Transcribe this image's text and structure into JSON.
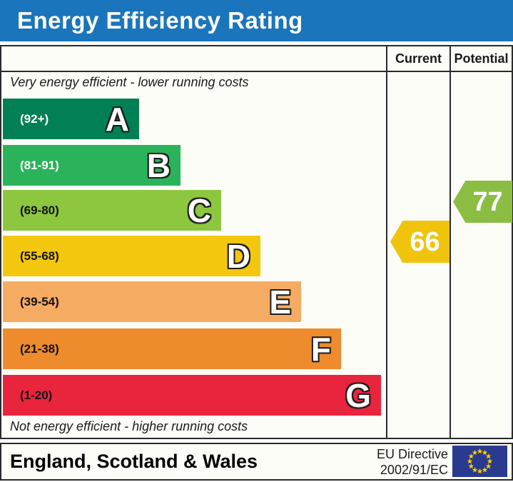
{
  "title": "Energy Efficiency Rating",
  "table": {
    "columns": {
      "current": "Current",
      "potential": "Potential"
    },
    "caption_top": "Very energy efficient - lower running costs",
    "caption_bottom": "Not energy efficient - higher running costs"
  },
  "bands": [
    {
      "letter": "A",
      "range": "(92+)",
      "color": "#008054",
      "label_color": "#ffffff"
    },
    {
      "letter": "B",
      "range": "(81-91)",
      "color": "#2ab35a",
      "label_color": "#ffffff"
    },
    {
      "letter": "C",
      "range": "(69-80)",
      "color": "#8dc63f",
      "label_color": "#111111"
    },
    {
      "letter": "D",
      "range": "(55-68)",
      "color": "#f3c70e",
      "label_color": "#111111"
    },
    {
      "letter": "E",
      "range": "(39-54)",
      "color": "#f6ab62",
      "label_color": "#111111"
    },
    {
      "letter": "F",
      "range": "(21-38)",
      "color": "#ee8b2c",
      "label_color": "#111111"
    },
    {
      "letter": "G",
      "range": "(1-20)",
      "color": "#e9243d",
      "label_color": "#111111"
    }
  ],
  "ratings": {
    "current": {
      "value": "66",
      "color": "#f0c40c",
      "band": "D"
    },
    "potential": {
      "value": "77",
      "color": "#8bbd43",
      "band": "C"
    }
  },
  "footer": {
    "region": "England, Scotland & Wales",
    "directive_line1": "EU Directive",
    "directive_line2": "2002/91/EC",
    "flag": {
      "name": "eu-flag",
      "background": "#2a3b8f",
      "star_color": "#ffcc00"
    }
  },
  "colors": {
    "title_bar": "#1b75bc",
    "border": "#2b2b2b",
    "background": "#fdfdf8"
  },
  "chart_data": {
    "type": "bar",
    "chart_kind": "epc-energy-efficiency-rating",
    "title": "Energy Efficiency Rating",
    "categories": [
      "A",
      "B",
      "C",
      "D",
      "E",
      "F",
      "G"
    ],
    "band_ranges": [
      "92+",
      "81-91",
      "69-80",
      "55-68",
      "39-54",
      "21-38",
      "1-20"
    ],
    "band_colors": [
      "#008054",
      "#2ab35a",
      "#8dc63f",
      "#f3c70e",
      "#f6ab62",
      "#ee8b2c",
      "#e9243d"
    ],
    "series": [
      {
        "name": "Current",
        "values": [
          66
        ]
      },
      {
        "name": "Potential",
        "values": [
          77
        ]
      }
    ],
    "annotations": [
      "Very energy efficient - lower running costs",
      "Not energy efficient - higher running costs"
    ],
    "footer_note": "England, Scotland & Wales | EU Directive 2002/91/EC",
    "legend_position": "top-right-columns",
    "grid": false
  }
}
